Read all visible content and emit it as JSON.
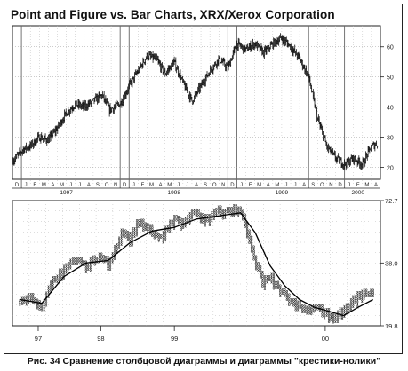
{
  "title": "Point and Figure vs. Bar Charts, XRX/Xerox Corporation",
  "caption": "Рис. 34 Сравнение столбцовой диаграммы и диаграммы \"крестики-нолики\"",
  "chart_data": [
    {
      "type": "bar",
      "title": "Point and Figure vs. Bar Charts, XRX/Xerox Corporation",
      "yticks": [
        20,
        30,
        40,
        50,
        60
      ],
      "ylim": [
        16,
        67
      ],
      "grid": true,
      "month_labels": [
        "D",
        "J",
        "F",
        "M",
        "A",
        "M",
        "J",
        "J",
        "A",
        "S",
        "O",
        "N",
        "D",
        "J",
        "F",
        "M",
        "A",
        "M",
        "J",
        "J",
        "A",
        "S",
        "O",
        "N",
        "D",
        "J",
        "F",
        "M",
        "A",
        "M",
        "J",
        "J",
        "A",
        "S",
        "O",
        "N",
        "D",
        "J",
        "F",
        "M",
        "A"
      ],
      "years": [
        {
          "label": "1997",
          "month_index": 6
        },
        {
          "label": "1998",
          "month_index": 18
        },
        {
          "label": "1999",
          "month_index": 30
        },
        {
          "label": "2000",
          "month_index": 38.5
        }
      ],
      "price_path": [
        [
          0,
          22
        ],
        [
          1.2,
          26
        ],
        [
          2,
          27
        ],
        [
          3,
          30
        ],
        [
          4,
          29
        ],
        [
          5,
          33
        ],
        [
          6,
          38
        ],
        [
          7,
          41
        ],
        [
          8,
          40
        ],
        [
          9,
          42
        ],
        [
          10,
          44
        ],
        [
          10.8,
          39
        ],
        [
          12,
          41
        ],
        [
          13,
          47
        ],
        [
          14,
          52
        ],
        [
          15,
          57
        ],
        [
          16,
          56
        ],
        [
          17,
          51
        ],
        [
          18,
          55
        ],
        [
          19,
          48
        ],
        [
          20,
          42
        ],
        [
          21,
          47
        ],
        [
          22,
          52
        ],
        [
          23,
          56
        ],
        [
          24,
          53
        ],
        [
          25,
          61
        ],
        [
          26,
          59
        ],
        [
          27,
          61
        ],
        [
          28,
          58
        ],
        [
          29,
          61
        ],
        [
          30,
          63
        ],
        [
          31,
          60
        ],
        [
          32,
          56
        ],
        [
          33,
          50
        ],
        [
          34,
          36
        ],
        [
          35,
          27
        ],
        [
          36,
          23
        ],
        [
          37,
          21
        ],
        [
          38,
          23
        ],
        [
          39,
          21
        ],
        [
          40,
          27
        ],
        [
          40.8,
          28
        ]
      ]
    },
    {
      "type": "scatter",
      "subtype": "point-and-figure",
      "yticks": [
        {
          "value": 72.7,
          "label": "72.7"
        },
        {
          "value": 38.0,
          "label": "38.0"
        },
        {
          "value": 19.8,
          "label": "19.8"
        }
      ],
      "ylim": [
        19.8,
        72.7
      ],
      "scale": "log",
      "years": [
        {
          "label": "97",
          "pos": 0.07
        },
        {
          "label": "98",
          "pos": 0.24
        },
        {
          "label": "99",
          "pos": 0.44
        },
        {
          "label": "00",
          "pos": 0.85
        }
      ],
      "boxes": [
        [
          0.02,
          25
        ],
        [
          0.04,
          27
        ],
        [
          0.06,
          26
        ],
        [
          0.08,
          24
        ],
        [
          0.1,
          30
        ],
        [
          0.12,
          33
        ],
        [
          0.14,
          35
        ],
        [
          0.16,
          38
        ],
        [
          0.18,
          40
        ],
        [
          0.2,
          36
        ],
        [
          0.22,
          39
        ],
        [
          0.24,
          41
        ],
        [
          0.26,
          38
        ],
        [
          0.28,
          44
        ],
        [
          0.3,
          53
        ],
        [
          0.32,
          49
        ],
        [
          0.34,
          58
        ],
        [
          0.36,
          55
        ],
        [
          0.38,
          53
        ],
        [
          0.4,
          49
        ],
        [
          0.42,
          54
        ],
        [
          0.44,
          60
        ],
        [
          0.46,
          57
        ],
        [
          0.48,
          62
        ],
        [
          0.5,
          64
        ],
        [
          0.52,
          59
        ],
        [
          0.54,
          62
        ],
        [
          0.56,
          66
        ],
        [
          0.58,
          64
        ],
        [
          0.6,
          67
        ],
        [
          0.62,
          64
        ],
        [
          0.64,
          52
        ],
        [
          0.66,
          38
        ],
        [
          0.68,
          31
        ],
        [
          0.7,
          33
        ],
        [
          0.72,
          29
        ],
        [
          0.74,
          27
        ],
        [
          0.76,
          25
        ],
        [
          0.78,
          24
        ],
        [
          0.8,
          23
        ],
        [
          0.82,
          24
        ],
        [
          0.84,
          23
        ],
        [
          0.86,
          22
        ],
        [
          0.88,
          22
        ],
        [
          0.9,
          23
        ],
        [
          0.92,
          25
        ],
        [
          0.94,
          27
        ],
        [
          0.96,
          28
        ],
        [
          0.98,
          27
        ]
      ],
      "trend": [
        [
          0.02,
          26
        ],
        [
          0.08,
          25
        ],
        [
          0.14,
          33
        ],
        [
          0.2,
          38
        ],
        [
          0.26,
          39
        ],
        [
          0.32,
          47
        ],
        [
          0.38,
          53
        ],
        [
          0.44,
          55
        ],
        [
          0.5,
          60
        ],
        [
          0.56,
          62
        ],
        [
          0.62,
          64
        ],
        [
          0.66,
          52
        ],
        [
          0.7,
          37
        ],
        [
          0.74,
          30
        ],
        [
          0.78,
          26
        ],
        [
          0.82,
          24
        ],
        [
          0.86,
          23
        ],
        [
          0.9,
          22
        ],
        [
          0.94,
          24
        ],
        [
          0.98,
          26
        ]
      ]
    }
  ]
}
